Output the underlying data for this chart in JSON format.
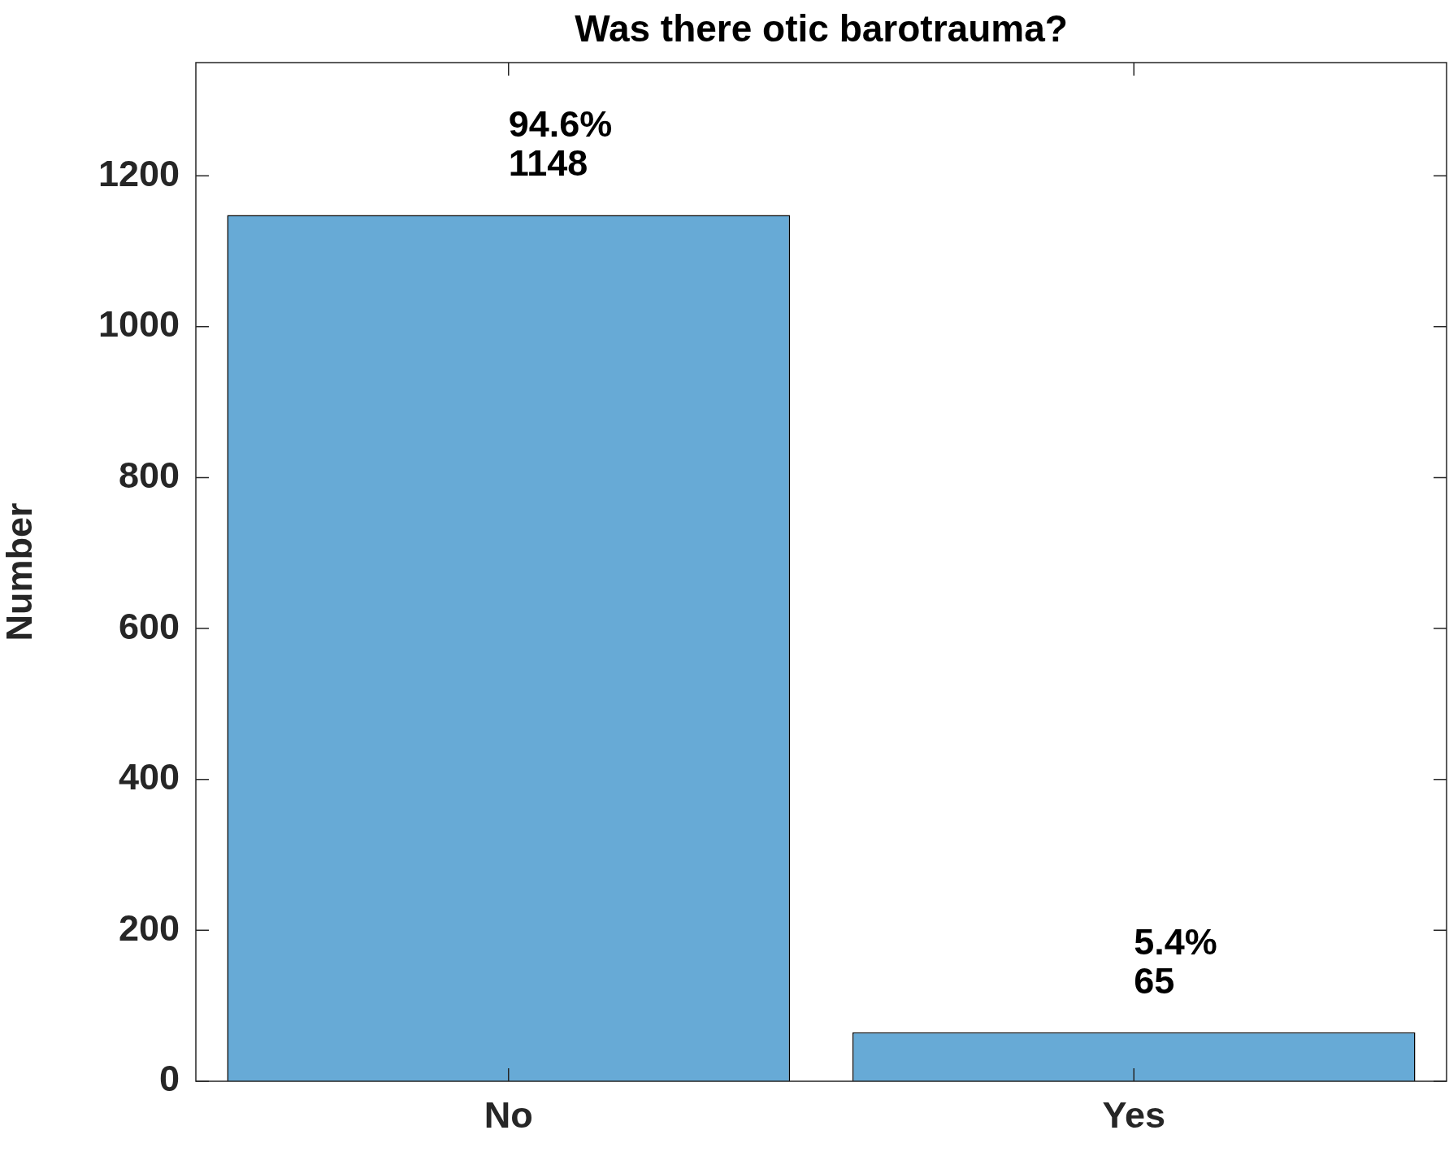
{
  "chart_data": {
    "type": "bar",
    "title": "Was there otic barotrauma?",
    "ylabel": "Number",
    "categories": [
      "No",
      "Yes"
    ],
    "values": [
      1148,
      65
    ],
    "color": "#67aad6",
    "value_labels": [
      "94.6%\n1148",
      "5.4%\n65"
    ],
    "ylim": [
      0,
      1350
    ],
    "yticks": [
      0,
      200,
      400,
      600,
      800,
      1000,
      1200
    ],
    "grid": false,
    "legend": false
  }
}
